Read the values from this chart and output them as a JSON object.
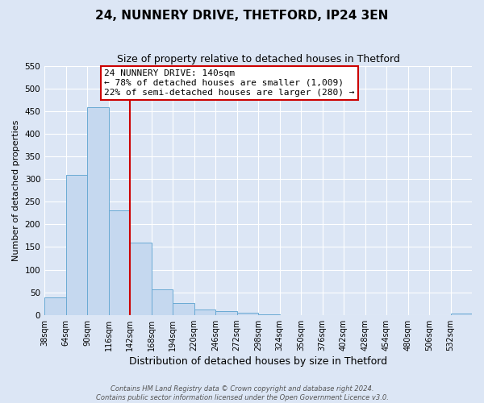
{
  "title": "24, NUNNERY DRIVE, THETFORD, IP24 3EN",
  "subtitle": "Size of property relative to detached houses in Thetford",
  "xlabel": "Distribution of detached houses by size in Thetford",
  "ylabel": "Number of detached properties",
  "bin_edges": [
    38,
    64,
    90,
    116,
    142,
    168,
    194,
    220,
    246,
    272,
    298,
    324,
    350,
    376,
    402,
    428,
    454,
    480,
    506,
    532,
    558
  ],
  "bin_counts": [
    38,
    310,
    458,
    230,
    160,
    57,
    26,
    12,
    8,
    5,
    2,
    0,
    0,
    0,
    0,
    0,
    0,
    0,
    0,
    3
  ],
  "bar_facecolor": "#c5d8ef",
  "bar_edgecolor": "#6aaad4",
  "vline_x": 142,
  "vline_color": "#cc0000",
  "ylim": [
    0,
    550
  ],
  "yticks": [
    0,
    50,
    100,
    150,
    200,
    250,
    300,
    350,
    400,
    450,
    500,
    550
  ],
  "annotation_title": "24 NUNNERY DRIVE: 140sqm",
  "annotation_line1": "← 78% of detached houses are smaller (1,009)",
  "annotation_line2": "22% of semi-detached houses are larger (280) →",
  "annotation_box_edgecolor": "#cc0000",
  "footer_line1": "Contains HM Land Registry data © Crown copyright and database right 2024.",
  "footer_line2": "Contains public sector information licensed under the Open Government Licence v3.0.",
  "fig_facecolor": "#dce6f5",
  "axes_facecolor": "#dce6f5",
  "grid_color": "#ffffff",
  "title_fontsize": 11,
  "subtitle_fontsize": 9,
  "xlabel_fontsize": 9,
  "ylabel_fontsize": 8,
  "tick_fontsize": 7.5,
  "annotation_fontsize": 8,
  "footer_fontsize": 6
}
